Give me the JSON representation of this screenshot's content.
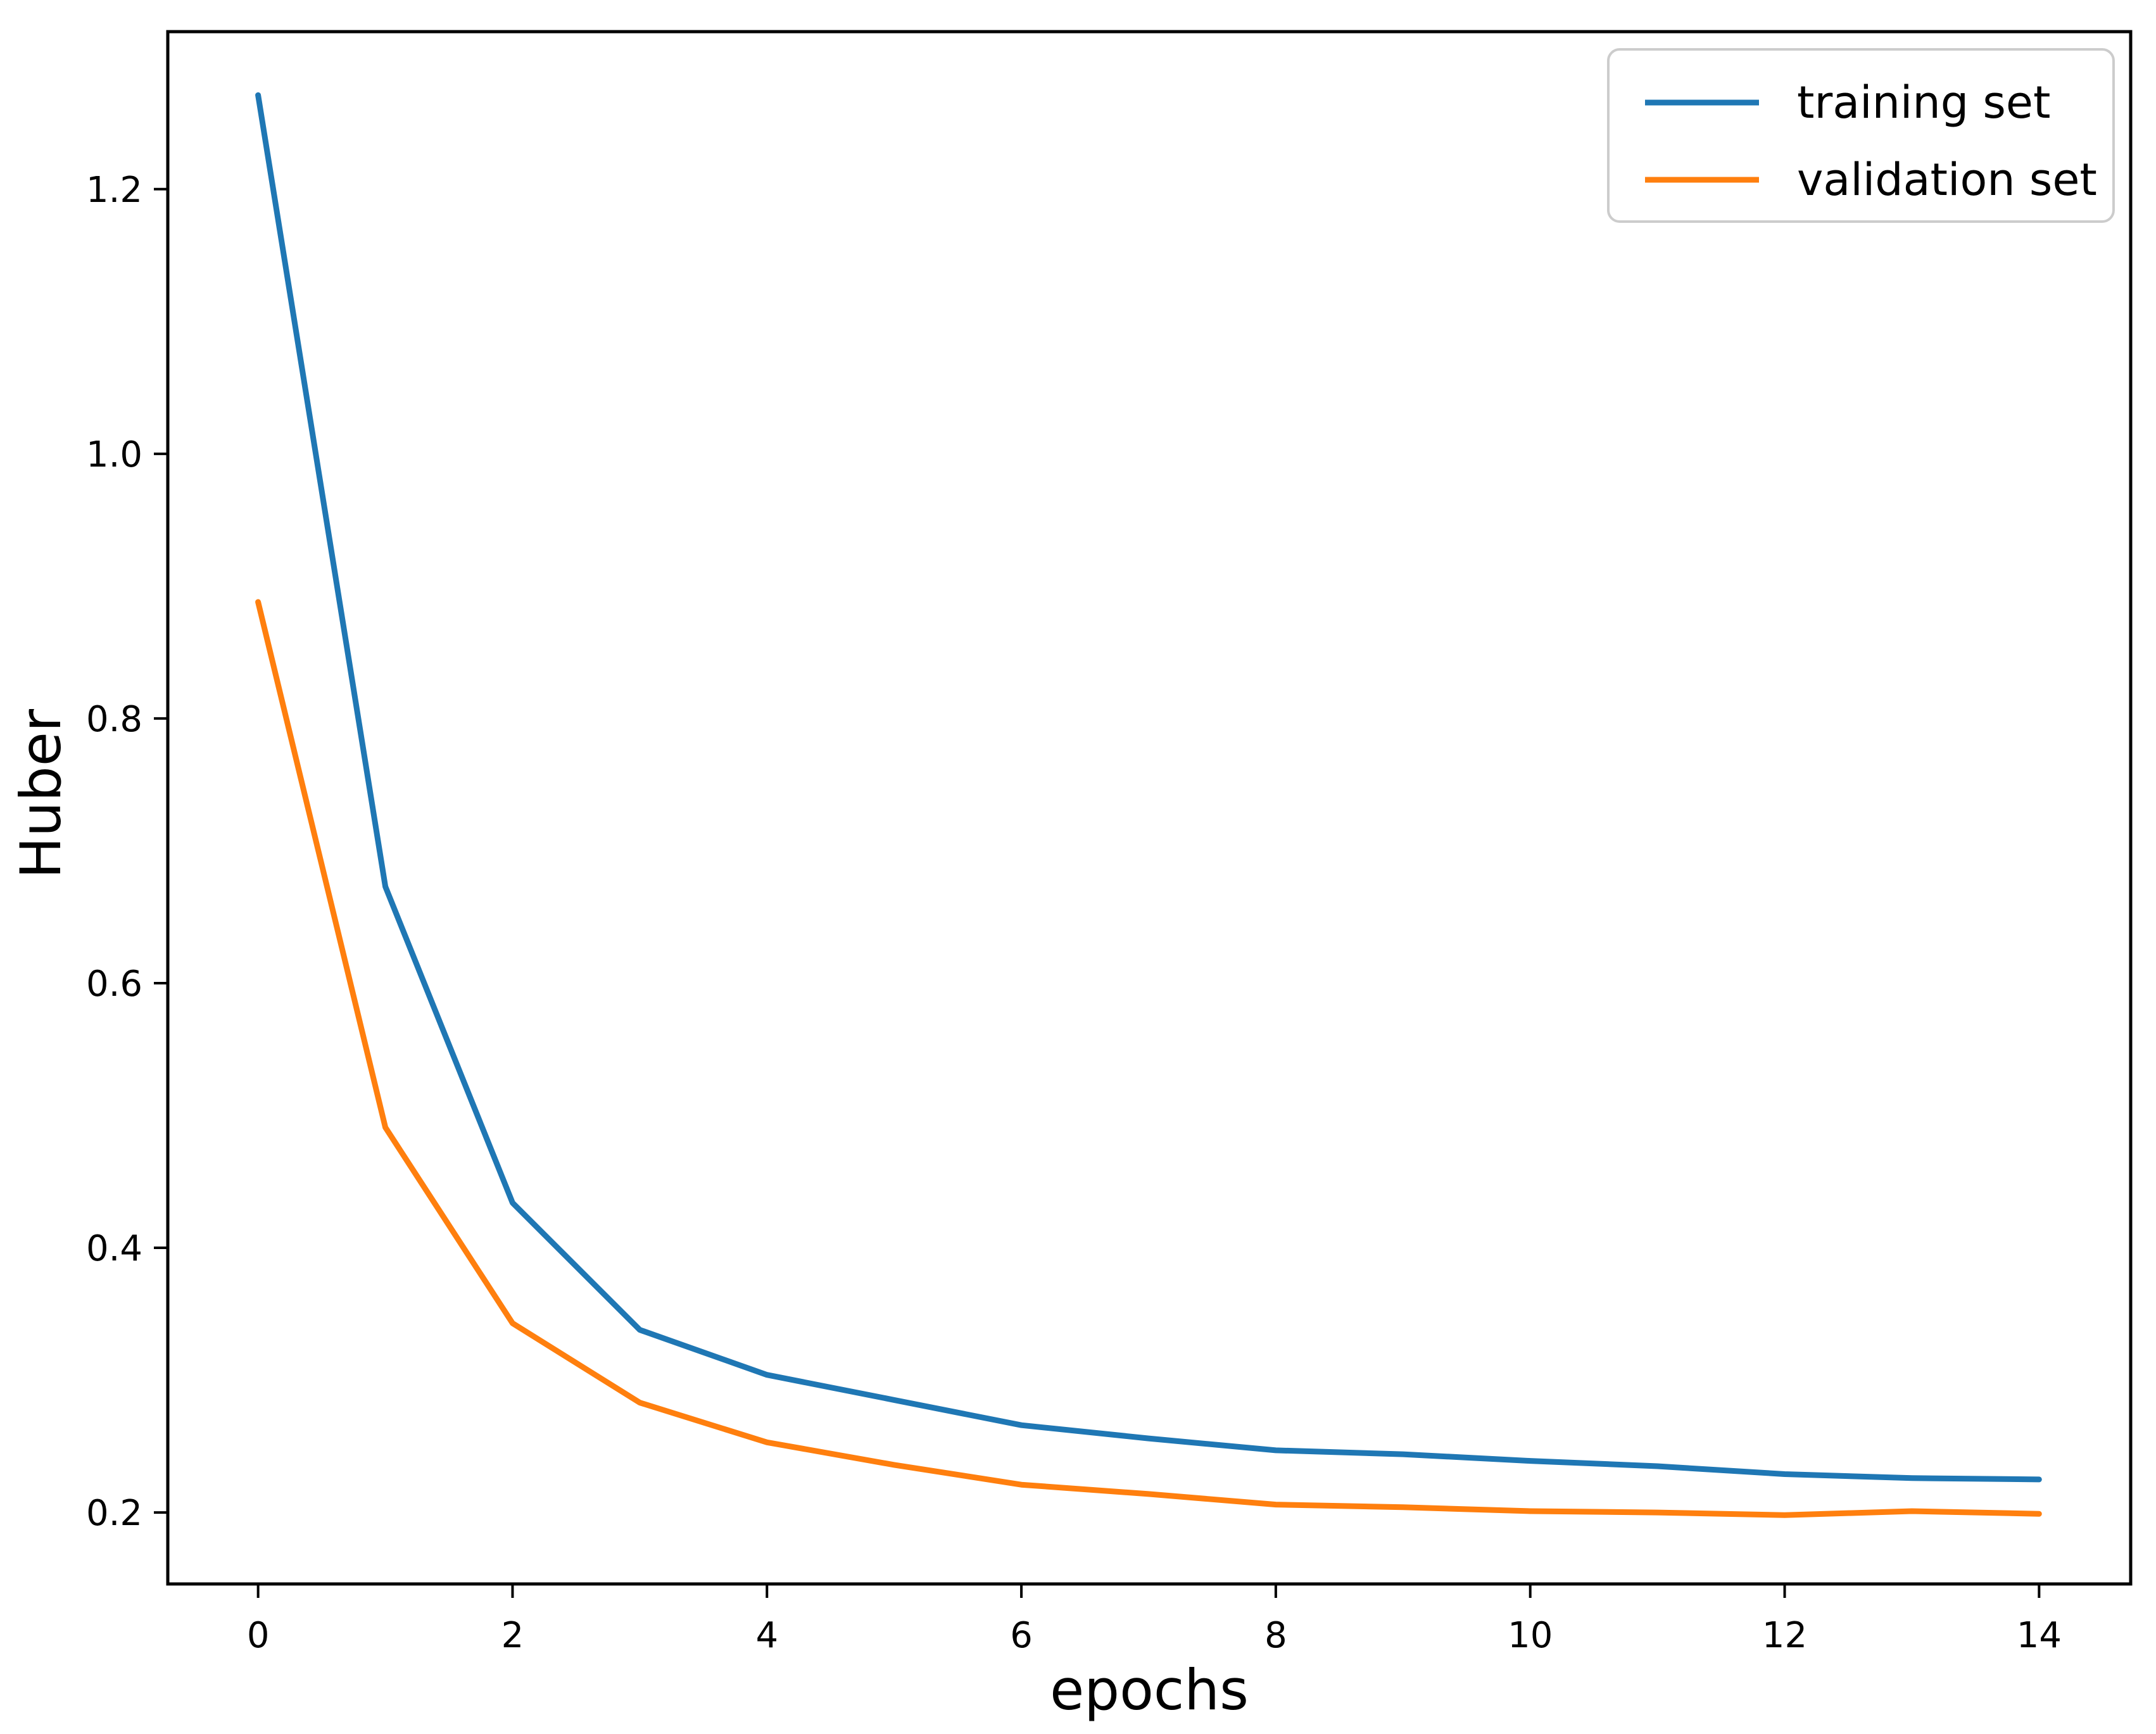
{
  "chart_data": {
    "type": "line",
    "title": "",
    "xlabel": "epochs",
    "ylabel": "Huber",
    "x": [
      0,
      1,
      2,
      3,
      4,
      5,
      6,
      7,
      8,
      9,
      10,
      11,
      12,
      13,
      14
    ],
    "series": [
      {
        "name": "training set",
        "color": "#1f77b4",
        "values": [
          1.271,
          0.673,
          0.434,
          0.338,
          0.304,
          0.285,
          0.266,
          0.256,
          0.247,
          0.244,
          0.239,
          0.235,
          0.229,
          0.226,
          0.225
        ]
      },
      {
        "name": "validation set",
        "color": "#ff7f0e",
        "values": [
          0.888,
          0.491,
          0.343,
          0.283,
          0.253,
          0.236,
          0.221,
          0.214,
          0.206,
          0.204,
          0.201,
          0.2,
          0.198,
          0.201,
          0.199
        ]
      }
    ],
    "xticks": [
      0,
      2,
      4,
      6,
      8,
      10,
      12,
      14
    ],
    "yticks": [
      0.2,
      0.4,
      0.6,
      0.8,
      1.0,
      1.2
    ],
    "xlim": [
      -0.71,
      14.72
    ],
    "ylim": [
      0.146,
      1.319
    ],
    "grid": false,
    "legend_position": "upper right",
    "axis_color": "#000000",
    "background": "#ffffff"
  }
}
